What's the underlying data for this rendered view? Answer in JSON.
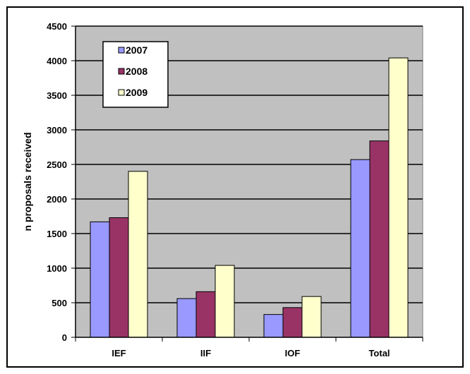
{
  "chart_data": {
    "type": "bar",
    "title": "",
    "xlabel": "",
    "ylabel": "n proposals received",
    "categories": [
      "IEF",
      "IIF",
      "IOF",
      "Total"
    ],
    "ylim": [
      0,
      4500
    ],
    "yticks": [
      0,
      500,
      1000,
      1500,
      2000,
      2500,
      3000,
      3500,
      4000,
      4500
    ],
    "grid": true,
    "legend": "top-left",
    "plot_background": "#c0c0c0",
    "series": [
      {
        "name": "2007",
        "color": "#9999ff",
        "values": [
          1670,
          560,
          330,
          2570
        ]
      },
      {
        "name": "2008",
        "color": "#993366",
        "values": [
          1730,
          660,
          430,
          2840
        ]
      },
      {
        "name": "2009",
        "color": "#ffffcc",
        "values": [
          2400,
          1040,
          590,
          4040
        ]
      }
    ]
  }
}
